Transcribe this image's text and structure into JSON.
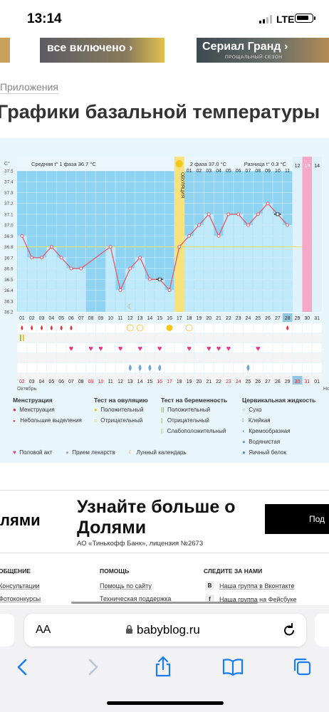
{
  "status_bar": {
    "time": "13:14",
    "network": "LTE"
  },
  "banners": [
    {
      "text": "все включено ›"
    },
    {
      "text": "Сериал Гранд ›",
      "sub": "ПРОЩАЛЬНЫЙ СЕЗОН"
    }
  ],
  "breadcrumb": "Приложения",
  "page_title": "Графики базальной температуры",
  "chart_header": {
    "phase1": "Средняя t° 1 фаза  36.7 °C",
    "phase2": "2 фаза  37.0 °C",
    "diff": "Разница t° 0.3 °C",
    "ovulation": "ОВУЛЯЦИЯ",
    "unit": "C°"
  },
  "chart_data": {
    "type": "line",
    "ylabel": "C°",
    "ylim": [
      36.2,
      37.5
    ],
    "y_ticks": [
      "37.5",
      "37.4",
      "37.3",
      "37.2",
      "37.1",
      "37.0",
      "36.9",
      "36.8",
      "36.7",
      "36.6",
      "36.5",
      "36.4",
      "36.3",
      "36.2"
    ],
    "cover_line": 36.8,
    "ovulation_day": 17,
    "phase2_start_day": 18,
    "days": [
      "01",
      "02",
      "03",
      "04",
      "05",
      "06",
      "07",
      "08",
      "09",
      "10",
      "11",
      "12",
      "13",
      "14",
      "15",
      "16",
      "17",
      "18",
      "19",
      "20",
      "21",
      "22",
      "23",
      "24",
      "25",
      "26",
      "27",
      "28",
      "29",
      "30",
      "31"
    ],
    "top_labels": [
      "01",
      "02",
      "03",
      "04",
      "05",
      "06",
      "07",
      "08",
      "09",
      "10",
      "11",
      "12",
      "13",
      "14"
    ],
    "series": [
      {
        "values": [
          36.9,
          36.7,
          36.7,
          36.8,
          36.7,
          36.6,
          36.6,
          null,
          null,
          36.8,
          36.4,
          36.6,
          36.7,
          36.5,
          36.5,
          36.4,
          36.8,
          36.9,
          37.0,
          37.1,
          36.9,
          37.1,
          37.1,
          37.0,
          37.1,
          37.2,
          37.1,
          37.0,
          null,
          null,
          null
        ]
      }
    ],
    "excluded_days": [
      15,
      27
    ],
    "menstruation_days": [
      1,
      2,
      3,
      4,
      5,
      6,
      28
    ],
    "ovulation_test_positive_days": [
      16
    ],
    "ovulation_test_negative_days": [
      12,
      13,
      18
    ],
    "pregnancy_test_positive_days": [
      1
    ],
    "intercourse_days": [
      6,
      8,
      9,
      11,
      13,
      15,
      18,
      20,
      21,
      22,
      25
    ],
    "moon_day": 12,
    "cervical_days": [
      12,
      13,
      14,
      15,
      24
    ],
    "date_labels": [
      "02",
      "03",
      "04",
      "05",
      "06",
      "07",
      "08",
      "09",
      "10",
      "11",
      "12",
      "13",
      "14",
      "15",
      "16",
      "17",
      "18",
      "19",
      "20",
      "21",
      "22",
      "23",
      "24",
      "25",
      "26",
      "27",
      "28",
      "29",
      "30",
      "31",
      "01"
    ],
    "date_red": [
      "02",
      "09",
      "10",
      "16",
      "17",
      "23",
      "24",
      "30",
      "31"
    ],
    "highlight_day": 28,
    "month_start": "Октябрь",
    "month_next": "Но"
  },
  "legend": {
    "col1_title": "Менструация",
    "col1_items": [
      "Менструация",
      "Небольшие выделения"
    ],
    "col2_title": "Тест на овуляцию",
    "col2_items": [
      "Положительный",
      "Отрицательный"
    ],
    "col3_title": "Тест на беременность",
    "col3_items": [
      "Положительный",
      "Отрицательный",
      "Слабоположительный"
    ],
    "col4_title": "Цервикальная жидкость",
    "col4_items": [
      "Сухо",
      "Клейкая",
      "Кремообразная",
      "Водянистая",
      "Яичный белок"
    ],
    "bottom": [
      "Половой акт",
      "Прием лекарств",
      "Лунный календарь"
    ]
  },
  "ad": {
    "left_text": "лями",
    "title": "Узнайте больше о Долями",
    "subtitle": "АО «Тинькофф Банк», лицензия №2673",
    "button": "Под"
  },
  "footer": {
    "col1_title": "ОБЩЕНИЕ",
    "col1_links": [
      "Консультации",
      "Фотоконкурсы"
    ],
    "col2_title": "ПОМОЩЬ",
    "col2_links": [
      "Помощь по сайту",
      "Техническая поддержка"
    ],
    "col3_title": "СЛЕДИТЕ ЗА НАМИ",
    "col3_links": [
      "Наша группа в Вконтакте",
      "Наша группа на Фейсбуке"
    ]
  },
  "browser": {
    "text_size": "AA",
    "url": "babyblog.ru"
  },
  "colors": {
    "chart_bg": "#8fd3f3",
    "phase2_bg": "#c9ecfa",
    "ovulation": "#f8e27a",
    "line": "#e05a6b",
    "heart": "#e8338a",
    "drop": "#e0323c",
    "accent": "#1a7df1"
  }
}
